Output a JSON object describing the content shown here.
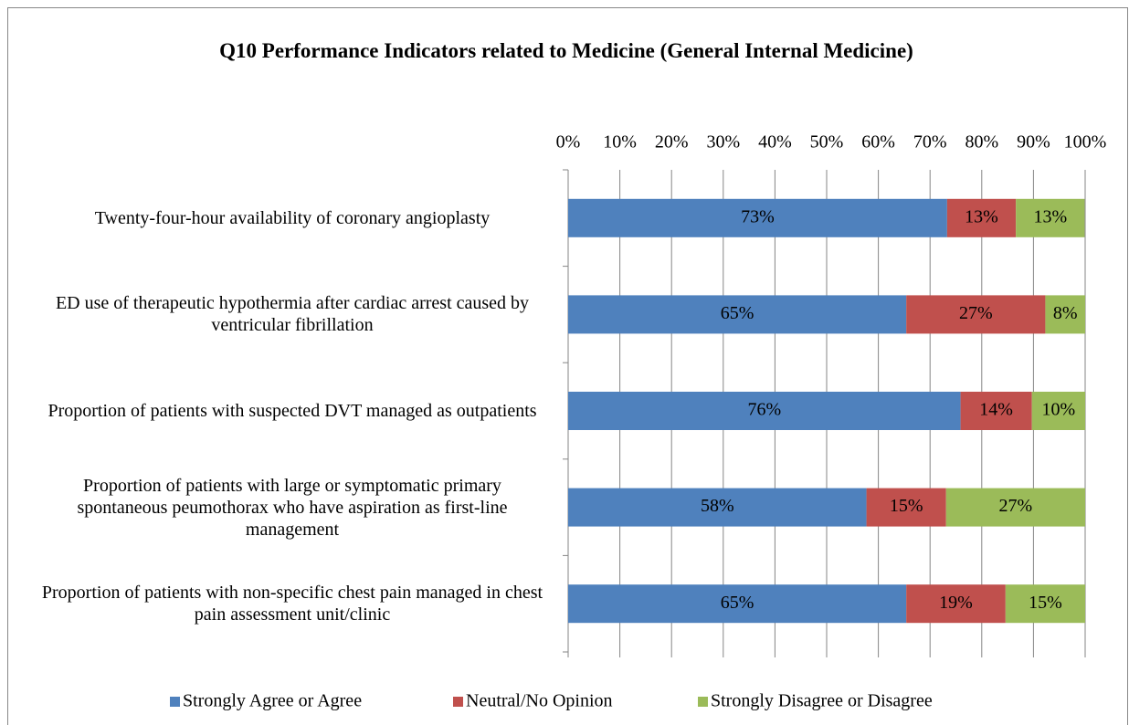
{
  "chart_data": {
    "type": "bar",
    "orientation": "horizontal",
    "stacked": true,
    "title": "Q10  Performance Indicators related to Medicine (General Internal Medicine)",
    "categories": [
      "Twenty-four-hour availability of coronary angioplasty",
      "ED use of therapeutic hypothermia after cardiac arrest caused by ventricular fibrillation",
      "Proportion of patients with suspected DVT managed as outpatients",
      "Proportion of patients with large or symptomatic primary spontaneous peumothorax who have aspiration as first-line management",
      "Proportion of patients with non-specific chest pain managed in chest pain assessment unit/clinic"
    ],
    "series": [
      {
        "name": "Strongly Agree or Agree",
        "color": "#4f81bd",
        "values": [
          73.3,
          65.4,
          75.9,
          57.7,
          65.4
        ],
        "value_labels": [
          "73%",
          "65%",
          "76%",
          "58%",
          "65%"
        ]
      },
      {
        "name": "Neutral/No Opinion",
        "color": "#c0504d",
        "values": [
          13.3,
          26.9,
          13.8,
          15.4,
          19.2
        ],
        "value_labels": [
          "13%",
          "27%",
          "14%",
          "15%",
          "19%"
        ]
      },
      {
        "name": "Strongly Disagree or Disagree",
        "color": "#9bbb59",
        "values": [
          13.3,
          7.7,
          10.3,
          26.9,
          15.4
        ],
        "value_labels": [
          "13%",
          "8%",
          "10%",
          "27%",
          "15%"
        ]
      }
    ],
    "xlim": [
      0,
      100
    ],
    "xticks": [
      {
        "value": 0,
        "label": "0%"
      },
      {
        "value": 10,
        "label": "10%"
      },
      {
        "value": 20,
        "label": "20%"
      },
      {
        "value": 30,
        "label": "30%"
      },
      {
        "value": 40,
        "label": "40%"
      },
      {
        "value": 50,
        "label": "50%"
      },
      {
        "value": 60,
        "label": "60%"
      },
      {
        "value": 70,
        "label": "70%"
      },
      {
        "value": 80,
        "label": "80%"
      },
      {
        "value": 90,
        "label": "90%"
      },
      {
        "value": 100,
        "label": "100%"
      }
    ],
    "grid": true,
    "legend": "bottom"
  }
}
